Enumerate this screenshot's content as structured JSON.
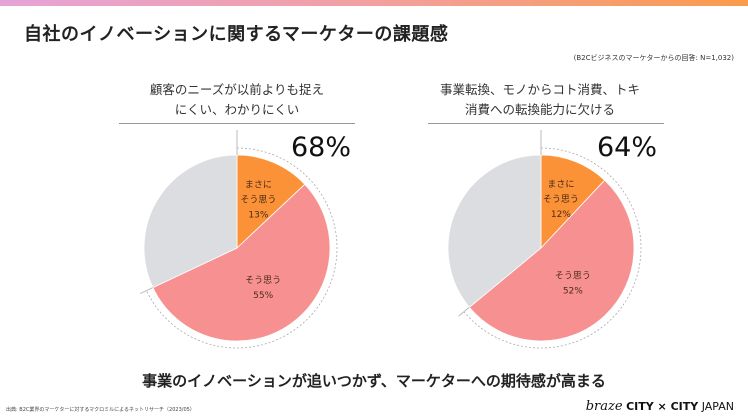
{
  "header": {
    "title": "自社のイノベーションに関するマーケターの課題感",
    "note": "(B2Cビジネスのマーケターからの回答: N=1,032)"
  },
  "colors": {
    "strongly_agree": "#fb9237",
    "agree": "#f79191",
    "other": "#dcdde0",
    "accent_gradient": [
      "#e6a3d8",
      "#fb9b4c"
    ]
  },
  "chart_data": [
    {
      "type": "pie",
      "title_lines": [
        "顧客のニーズが以前よりも捉え",
        "にくい、わかりにくい"
      ],
      "total_label": "68%",
      "slices": [
        {
          "label_lines": [
            "まさに",
            "そう思う"
          ],
          "value": 13,
          "value_label": "13%",
          "key": "strongly_agree"
        },
        {
          "label_lines": [
            "そう思う"
          ],
          "value": 55,
          "value_label": "55%",
          "key": "agree"
        },
        {
          "value": 32,
          "key": "other"
        }
      ]
    },
    {
      "type": "pie",
      "title_lines": [
        "事業転換、モノからコト消費、トキ",
        "消費への転換能力に欠ける"
      ],
      "total_label": "64%",
      "slices": [
        {
          "label_lines": [
            "まさに",
            "そう思う"
          ],
          "value": 12,
          "value_label": "12%",
          "key": "strongly_agree"
        },
        {
          "label_lines": [
            "そう思う"
          ],
          "value": 52,
          "value_label": "52%",
          "key": "agree"
        },
        {
          "value": 36,
          "key": "other"
        }
      ]
    }
  ],
  "message": "事業のイノベーションが追いつかず、マーケターへの期待感が高まる",
  "footer": {
    "source": "出典: B2C業界のマーケターに対するマクロミルによるネットリサーチ（2023/05）",
    "logo": {
      "brand": "braze",
      "event": "CITY × CITY",
      "region": "JAPAN"
    }
  }
}
